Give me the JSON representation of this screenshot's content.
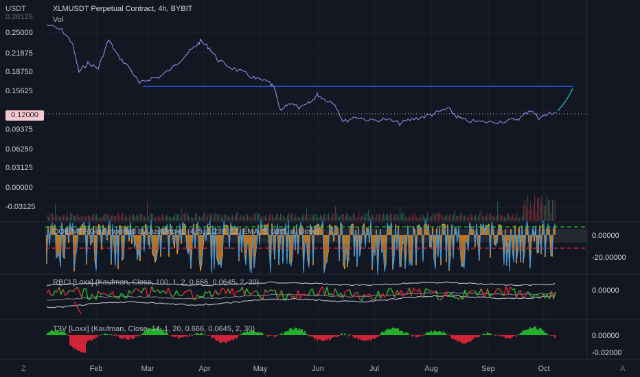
{
  "header": {
    "currency": "USDT",
    "title": "XLMUSDT Perpetual Contract, 4h, BYBIT",
    "vol_label": "Vol",
    "top_partial_tick": "0.28125"
  },
  "main_pane": {
    "y_ticks": [
      "0.25000",
      "0.21875",
      "0.18750",
      "0.15625",
      "0.09375",
      "0.06250",
      "0.03125",
      "0.00000",
      "-0.03125"
    ],
    "current_price": "0.12000"
  },
  "indicators": [
    {
      "name": "QQE MTF",
      "legend": "QQE MTF Glaz-modified by JustUncleL (4, 5, 1.238, 12, EMA, 5, 0.85, ø, close)",
      "ticks": [
        "0.00000",
        "-20.00000"
      ]
    },
    {
      "name": "RBCI",
      "legend": "RBCI [Loxx] (Kaufman, Close, 100, 1, 2, 0.666, 0.0645, 2, 30)",
      "ticks": [
        "0.00000"
      ]
    },
    {
      "name": "T3V",
      "legend": "T3V [Loxx] (Kaufman, Close, 14, 1, 20, 0.666, 0.0645, 2, 30)",
      "ticks": [
        "0.00000",
        "-0.02000"
      ]
    }
  ],
  "x_axis": [
    "Feb",
    "Mar",
    "Apr",
    "May",
    "Jun",
    "Jul",
    "Aug",
    "Sep",
    "Oct"
  ],
  "corner": {
    "left": "Z",
    "right": "A"
  },
  "colors": {
    "background": "#131722",
    "price": "#9598f5",
    "support_line": "#2962ff",
    "bull": "#26c22b",
    "bear": "#e8263a",
    "qqe_orange": "#f7931a",
    "qqe_blue": "#2196f3"
  }
}
